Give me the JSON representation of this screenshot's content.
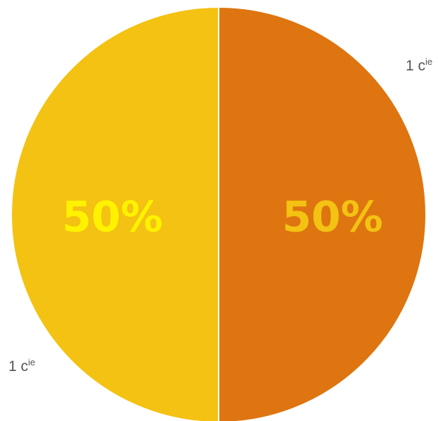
{
  "chart_data": {
    "type": "pie",
    "title": "",
    "slices": [
      {
        "label_main": "1 c",
        "label_sup": "ie",
        "value": 50,
        "percent_label": "50%",
        "color": "#DE7510",
        "label_color": "#F3C212"
      },
      {
        "label_main": "1 c",
        "label_sup": "ie",
        "value": 50,
        "percent_label": "50%",
        "color": "#F3C212",
        "label_color": "#FFF200"
      }
    ],
    "separator_color": "#FFFFFF",
    "legend": "none"
  }
}
